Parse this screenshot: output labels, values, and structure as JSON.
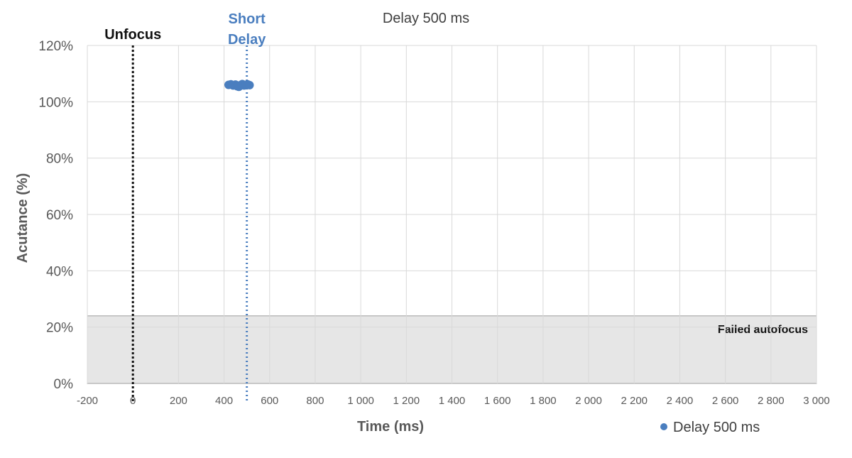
{
  "chart_data": {
    "type": "scatter",
    "title": "Delay 500 ms",
    "xlabel": "Time (ms)",
    "ylabel": "Acutance (%)",
    "xlim": [
      -200,
      3000
    ],
    "ylim": [
      0,
      120
    ],
    "x_ticks": [
      -200,
      0,
      200,
      400,
      600,
      800,
      1000,
      1200,
      1400,
      1600,
      1800,
      2000,
      2200,
      2400,
      2600,
      2800,
      3000
    ],
    "x_tick_labels": [
      "-200",
      "0",
      "200",
      "400",
      "600",
      "800",
      "1 000",
      "1 200",
      "1 400",
      "1 600",
      "1 800",
      "2 000",
      "2 200",
      "2 400",
      "2 600",
      "2 800",
      "3 000"
    ],
    "y_ticks": [
      0,
      20,
      40,
      60,
      80,
      100,
      120
    ],
    "y_tick_labels": [
      "0%",
      "20%",
      "40%",
      "60%",
      "80%",
      "100%",
      "120%"
    ],
    "grid": true,
    "legend": {
      "position": "bottom-right"
    },
    "series": [
      {
        "name": "Delay 500 ms",
        "color": "#4a7ebf",
        "points": [
          {
            "x": 420,
            "y": 106.0
          },
          {
            "x": 430,
            "y": 106.2
          },
          {
            "x": 440,
            "y": 105.8
          },
          {
            "x": 450,
            "y": 106.1
          },
          {
            "x": 458,
            "y": 105.5
          },
          {
            "x": 465,
            "y": 105.3
          },
          {
            "x": 472,
            "y": 105.9
          },
          {
            "x": 480,
            "y": 106.3
          },
          {
            "x": 488,
            "y": 105.8
          },
          {
            "x": 495,
            "y": 106.0
          },
          {
            "x": 503,
            "y": 106.2
          },
          {
            "x": 512,
            "y": 105.9
          }
        ]
      }
    ],
    "vertical_lines": [
      {
        "x": 0,
        "label": [
          "Unfocus"
        ],
        "color": "#111111"
      },
      {
        "x": 500,
        "label": [
          "Short",
          "Delay"
        ],
        "color": "#4a7ebf"
      }
    ],
    "bands": [
      {
        "y0": 0,
        "y1": 24,
        "label": "Failed autofocus",
        "fill": "#e6e6e6",
        "stroke": "#9e9e9e"
      }
    ],
    "colors": {
      "axis_text": "#595959",
      "axis_label": "#595959",
      "grid": "#d9d9d9",
      "title": "#404040"
    }
  }
}
